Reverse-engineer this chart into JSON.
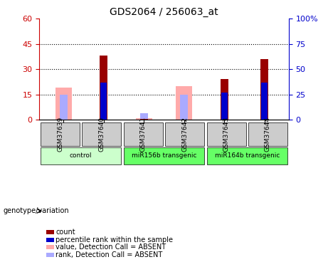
{
  "title": "GDS2064 / 256063_at",
  "samples": [
    "GSM37639",
    "GSM37640",
    "GSM37641",
    "GSM37642",
    "GSM37643",
    "GSM37644"
  ],
  "groups": [
    {
      "label": "control",
      "samples": [
        "GSM37639",
        "GSM37640"
      ],
      "color": "#ccffcc"
    },
    {
      "label": "miR156b transgenic",
      "samples": [
        "GSM37641",
        "GSM37642"
      ],
      "color": "#66ff66"
    },
    {
      "label": "miR164b transgenic",
      "samples": [
        "GSM37643",
        "GSM37644"
      ],
      "color": "#66ff66"
    }
  ],
  "count_values": [
    0,
    38,
    0.5,
    0,
    24,
    36
  ],
  "percentile_values": [
    0,
    22,
    0,
    0,
    16,
    22
  ],
  "absent_value_bars": [
    19,
    0,
    1,
    20,
    0,
    0
  ],
  "absent_rank_bars": [
    15,
    0,
    4,
    15,
    0,
    0
  ],
  "left_ylim": [
    0,
    60
  ],
  "right_ylim": [
    0,
    100
  ],
  "left_yticks": [
    0,
    15,
    30,
    45,
    60
  ],
  "right_yticks": [
    0,
    25,
    50,
    75,
    100
  ],
  "bar_width": 0.4,
  "count_color": "#990000",
  "percentile_color": "#0000cc",
  "absent_value_color": "#ffaaaa",
  "absent_rank_color": "#aaaaff",
  "label_color_left": "#cc0000",
  "label_color_right": "#0000cc",
  "bg_color": "#ffffff",
  "plot_bg": "#ffffff",
  "grid_color": "#000000",
  "sample_box_color": "#cccccc",
  "group_box_colors": [
    "#ccffcc",
    "#66ff66",
    "#66ff66"
  ],
  "legend_items": [
    {
      "label": "count",
      "color": "#990000"
    },
    {
      "label": "percentile rank within the sample",
      "color": "#0000cc"
    },
    {
      "label": "value, Detection Call = ABSENT",
      "color": "#ffaaaa"
    },
    {
      "label": "rank, Detection Call = ABSENT",
      "color": "#aaaaff"
    }
  ]
}
